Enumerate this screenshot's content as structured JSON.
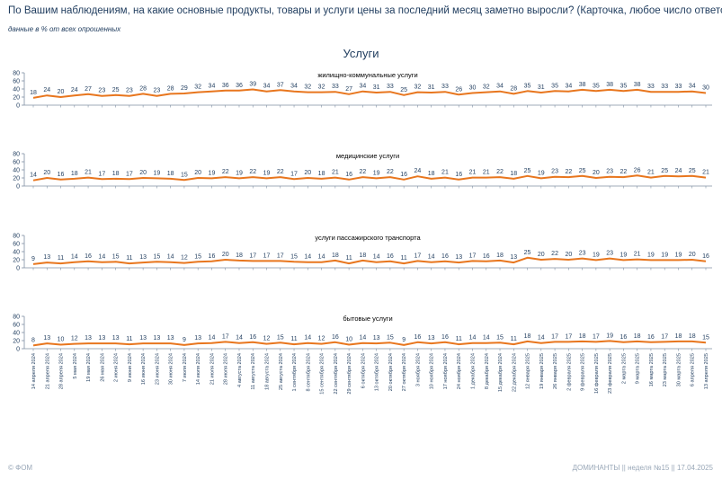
{
  "header": {
    "title": "По Вашим наблюдениям, на какие основные продукты, товары и услуги цены за последний месяц заметно выросли? (Карточка, любое число ответов.)",
    "subtitle": "данные в % от всех опрошенных"
  },
  "footer": {
    "left": "© ФОМ",
    "right": "ДОМИНАНТЫ  ||  неделя №15 || 17.04.2025"
  },
  "colors": {
    "line": "#e8761e",
    "axis": "#7f8fa3",
    "text": "#1f3c5e"
  },
  "chart_data": {
    "type": "line",
    "title": "Услуги",
    "y_ticks": [
      0,
      20,
      40,
      60,
      80
    ],
    "ylim": [
      0,
      80
    ],
    "grid": false,
    "x": [
      "14 апреля 2024",
      "21 апреля 2024",
      "28 апреля 2024",
      "5 мая 2024",
      "19 мая 2024",
      "26 мая 2024",
      "2 июня 2024",
      "9 июня 2024",
      "16 июня 2024",
      "23 июня 2024",
      "30 июня 2024",
      "7 июля 2024",
      "14 июля 2024",
      "21 июля 2024",
      "28 июля 2024",
      "4 августа 2024",
      "11 августа 2024",
      "18 августа 2024",
      "25 августа 2024",
      "1 сентября 2024",
      "8 сентября 2024",
      "15 сентября 2024",
      "22 сентября 2024",
      "29 сентября 2024",
      "6 октября 2024",
      "13 октября 2024",
      "20 октября 2024",
      "27 октября 2024",
      "3 ноября 2024",
      "10 ноября 2024",
      "17 ноября 2024",
      "24 ноября 2024",
      "1 декабря 2024",
      "8 декабря 2024",
      "15 декабря 2024",
      "22 декабря 2024",
      "12 января 2025",
      "19 января 2025",
      "26 января 2025",
      "2 февраля 2025",
      "9 февраля 2025",
      "16 февраля 2025",
      "23 февраля 2025",
      "2 марта 2025",
      "9 марта 2025",
      "16 марта 2025",
      "23 марта 2025",
      "30 марта 2025",
      "6 апреля 2025",
      "13 апреля 2025"
    ],
    "panels": [
      {
        "name": "жилищно-коммунальные услуги",
        "values": [
          18,
          24,
          20,
          24,
          27,
          23,
          25,
          23,
          28,
          23,
          28,
          29,
          32,
          34,
          36,
          36,
          39,
          34,
          37,
          34,
          32,
          32,
          33,
          27,
          34,
          31,
          33,
          25,
          32,
          31,
          33,
          26,
          30,
          32,
          34,
          28,
          35,
          31,
          35,
          34,
          38,
          35,
          38,
          35,
          38,
          33,
          33,
          33,
          34,
          30
        ]
      },
      {
        "name": "медицинские услуги",
        "values": [
          14,
          20,
          16,
          18,
          21,
          17,
          18,
          17,
          20,
          19,
          18,
          15,
          20,
          19,
          22,
          19,
          22,
          19,
          22,
          17,
          20,
          18,
          21,
          16,
          22,
          19,
          22,
          16,
          24,
          18,
          21,
          16,
          21,
          21,
          22,
          18,
          25,
          19,
          23,
          22,
          25,
          20,
          23,
          22,
          26,
          21,
          25,
          24,
          25,
          21
        ]
      },
      {
        "name": "услуги пассажирского транспорта",
        "values": [
          9,
          13,
          11,
          14,
          16,
          14,
          15,
          11,
          13,
          15,
          14,
          12,
          15,
          16,
          20,
          18,
          17,
          17,
          17,
          15,
          14,
          14,
          18,
          11,
          18,
          14,
          16,
          11,
          17,
          14,
          16,
          13,
          17,
          16,
          18,
          13,
          25,
          20,
          22,
          20,
          23,
          19,
          23,
          19,
          21,
          19,
          19,
          19,
          20,
          16
        ]
      },
      {
        "name": "бытовые услуги",
        "values": [
          8,
          13,
          10,
          12,
          13,
          13,
          13,
          11,
          13,
          13,
          13,
          9,
          13,
          14,
          17,
          14,
          16,
          12,
          15,
          11,
          14,
          12,
          16,
          10,
          14,
          13,
          15,
          9,
          16,
          13,
          16,
          11,
          14,
          14,
          15,
          11,
          18,
          14,
          17,
          17,
          18,
          17,
          19,
          16,
          18,
          16,
          17,
          18,
          18,
          15
        ]
      }
    ]
  }
}
